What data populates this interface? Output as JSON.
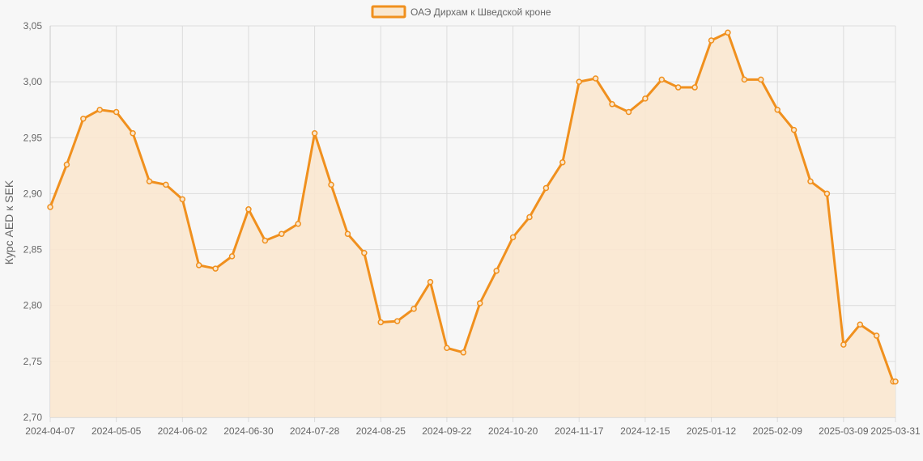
{
  "colors": {
    "line": "#f0901e",
    "fill": "#f9e7cf",
    "grid": "#dcdcdc",
    "background": "#f7f7f7"
  },
  "chart_data": {
    "type": "area",
    "title": "",
    "xlabel": "",
    "ylabel": "Курс AED к SEK",
    "ylim": [
      2.7,
      3.05
    ],
    "yticks": [
      "2,70",
      "2,75",
      "2,80",
      "2,85",
      "2,90",
      "2,95",
      "3,00",
      "3,05"
    ],
    "xticks": [
      "2024-04-07",
      "2024-05-05",
      "2024-06-02",
      "2024-06-30",
      "2024-07-28",
      "2024-08-25",
      "2024-09-22",
      "2024-10-20",
      "2024-11-17",
      "2024-12-15",
      "2025-01-12",
      "2025-02-09",
      "2025-03-09",
      "2025-03-31"
    ],
    "grid": true,
    "legend_position": "top",
    "series": [
      {
        "name": "ОАЭ Дирхам к Шведской кроне",
        "x": [
          "2024-04-07",
          "2024-04-14",
          "2024-04-21",
          "2024-04-28",
          "2024-05-05",
          "2024-05-12",
          "2024-05-19",
          "2024-05-26",
          "2024-06-02",
          "2024-06-09",
          "2024-06-16",
          "2024-06-23",
          "2024-06-30",
          "2024-07-07",
          "2024-07-14",
          "2024-07-21",
          "2024-07-28",
          "2024-08-04",
          "2024-08-11",
          "2024-08-18",
          "2024-08-25",
          "2024-09-01",
          "2024-09-08",
          "2024-09-15",
          "2024-09-22",
          "2024-09-29",
          "2024-10-06",
          "2024-10-13",
          "2024-10-20",
          "2024-10-27",
          "2024-11-03",
          "2024-11-10",
          "2024-11-17",
          "2024-11-24",
          "2024-12-01",
          "2024-12-08",
          "2024-12-15",
          "2024-12-22",
          "2024-12-29",
          "2025-01-05",
          "2025-01-12",
          "2025-01-19",
          "2025-01-26",
          "2025-02-02",
          "2025-02-09",
          "2025-02-16",
          "2025-02-23",
          "2025-03-02",
          "2025-03-09",
          "2025-03-16",
          "2025-03-23",
          "2025-03-30",
          "2025-03-31"
        ],
        "values": [
          2.888,
          2.926,
          2.967,
          2.975,
          2.973,
          2.954,
          2.911,
          2.908,
          2.895,
          2.836,
          2.833,
          2.844,
          2.886,
          2.858,
          2.864,
          2.873,
          2.954,
          2.908,
          2.864,
          2.847,
          2.785,
          2.786,
          2.797,
          2.821,
          2.762,
          2.758,
          2.802,
          2.831,
          2.861,
          2.879,
          2.905,
          2.928,
          3.0,
          3.003,
          2.98,
          2.973,
          2.985,
          3.002,
          2.995,
          2.995,
          3.037,
          3.044,
          3.002,
          3.002,
          2.975,
          2.957,
          2.911,
          2.9,
          2.765,
          2.783,
          2.773,
          2.732,
          2.732
        ]
      }
    ]
  }
}
